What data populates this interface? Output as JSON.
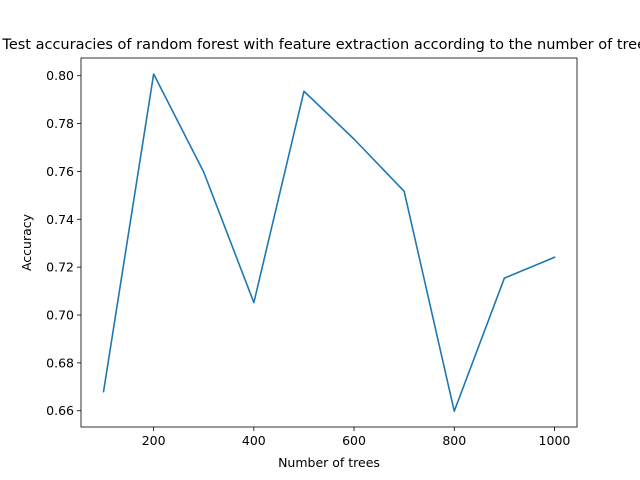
{
  "chart_data": {
    "type": "line",
    "title": "Test accuracies of random forest with feature extraction according to the number of trees",
    "xlabel": "Number of trees",
    "ylabel": "Accuracy",
    "xlim": [
      55,
      1045
    ],
    "ylim": [
      0.6532,
      0.8074
    ],
    "xticks": [
      200,
      400,
      600,
      800,
      1000
    ],
    "xtick_labels": [
      "200",
      "400",
      "600",
      "800",
      "1000"
    ],
    "yticks": [
      0.66,
      0.68,
      0.7,
      0.72,
      0.74,
      0.76,
      0.78,
      0.8
    ],
    "ytick_labels": [
      "0.66",
      "0.68",
      "0.70",
      "0.72",
      "0.74",
      "0.76",
      "0.78",
      "0.80"
    ],
    "grid": false,
    "series": [
      {
        "color": "#1f77b4",
        "x": [
          100,
          200,
          300,
          400,
          500,
          600,
          700,
          800,
          900,
          1000
        ],
        "y": [
          0.668,
          0.8007,
          0.7597,
          0.7052,
          0.7935,
          0.7735,
          0.7517,
          0.6598,
          0.7154,
          0.7241
        ]
      }
    ]
  }
}
